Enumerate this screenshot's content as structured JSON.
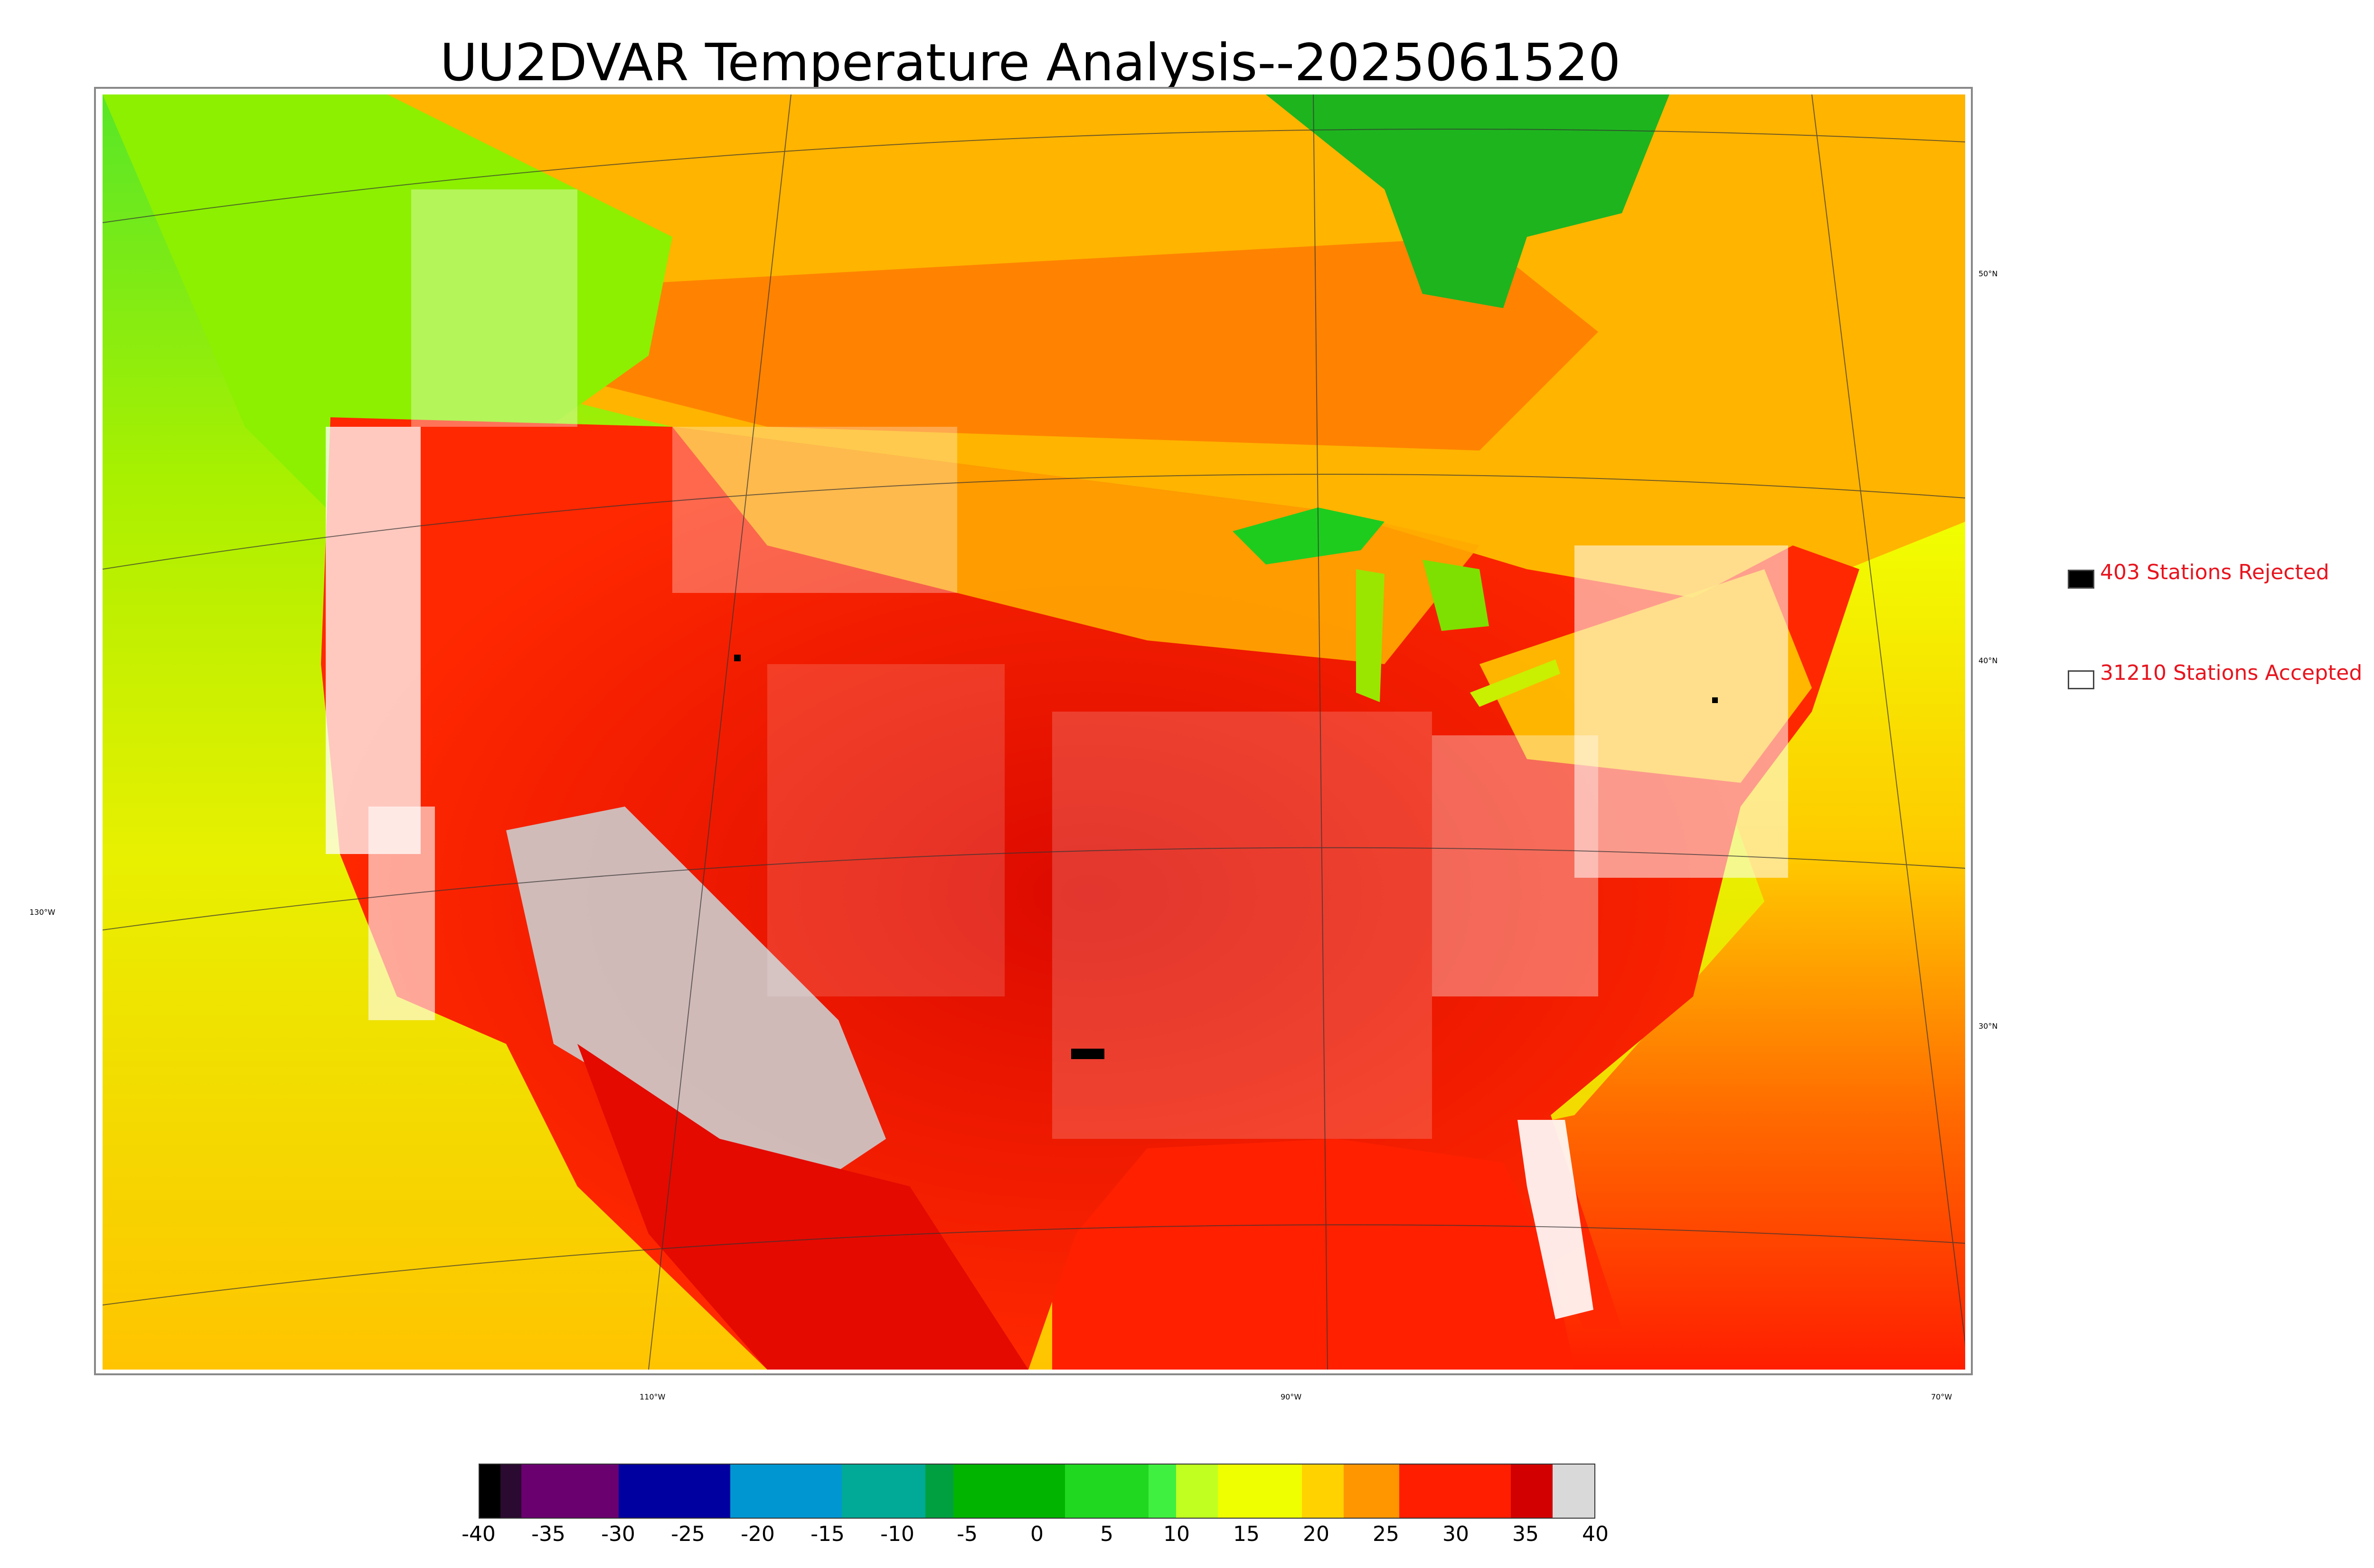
{
  "title": "UU2DVAR Temperature Analysis--2025061520",
  "legend": {
    "rejected": {
      "label": "403 Stations Rejected",
      "color": "#000000"
    },
    "accepted": {
      "label": "31210 Stations Accepted",
      "color": "#ffffff"
    }
  },
  "lat_labels": [
    "50°N",
    "40°N",
    "30°N"
  ],
  "lon_labels": [
    "130°W",
    "110°W",
    "90°W",
    "70°W"
  ],
  "colorbar": {
    "min": -40,
    "max": 40,
    "ticks": [
      "-40",
      "-35",
      "-30",
      "-25",
      "-20",
      "-15",
      "-10",
      "-5",
      "0",
      "5",
      "10",
      "15",
      "20",
      "25",
      "30",
      "35",
      "40"
    ],
    "colors": [
      {
        "from": -40,
        "to": -38.5,
        "color": "#000000"
      },
      {
        "from": -38.5,
        "to": -37,
        "color": "#2a0a30"
      },
      {
        "from": -37,
        "to": -30,
        "color": "#6a006f"
      },
      {
        "from": -30,
        "to": -22,
        "color": "#0000a0"
      },
      {
        "from": -22,
        "to": -14,
        "color": "#0096d2"
      },
      {
        "from": -14,
        "to": -8,
        "color": "#00aa96"
      },
      {
        "from": -8,
        "to": -6,
        "color": "#00a040"
      },
      {
        "from": -6,
        "to": 2,
        "color": "#00b400"
      },
      {
        "from": 2,
        "to": 8,
        "color": "#20d820"
      },
      {
        "from": 8,
        "to": 10,
        "color": "#40f040"
      },
      {
        "from": 10,
        "to": 13,
        "color": "#c0ff20"
      },
      {
        "from": 13,
        "to": 19,
        "color": "#f0ff00"
      },
      {
        "from": 19,
        "to": 22,
        "color": "#ffd200"
      },
      {
        "from": 22,
        "to": 26,
        "color": "#ff9600"
      },
      {
        "from": 26,
        "to": 34,
        "color": "#ff1e00"
      },
      {
        "from": 34,
        "to": 37,
        "color": "#d20000"
      },
      {
        "from": 37,
        "to": 40,
        "color": "#d9d9d9"
      }
    ]
  }
}
